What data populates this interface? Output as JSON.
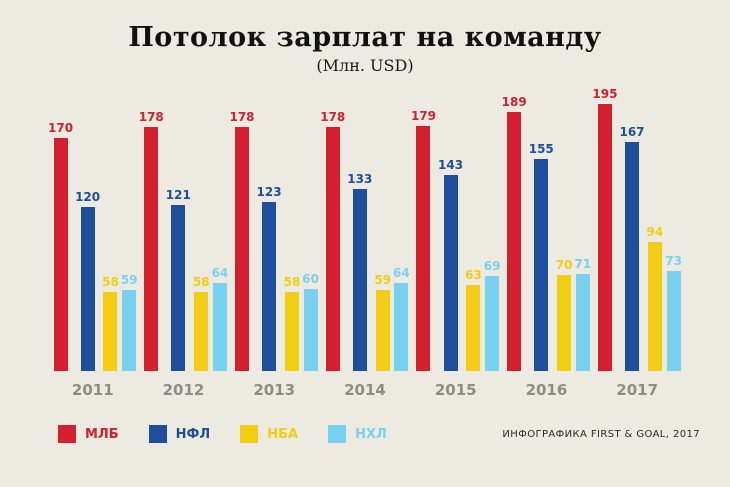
{
  "title": "Потолок зарплат на команду",
  "subtitle": "(Млн. USD)",
  "credit": "ИНФОГРАФИКА FIRST & GOAL, 2017",
  "colors": {
    "background": "#edeae1",
    "year_label": "#8e8c83"
  },
  "chart_data": {
    "type": "bar",
    "title": "Потолок зарплат на команду",
    "subtitle": "(Млн. USD)",
    "categories": [
      "2011",
      "2012",
      "2013",
      "2014",
      "2015",
      "2016",
      "2017"
    ],
    "series": [
      {
        "name": "МЛБ",
        "color": "#d2202f",
        "values": [
          170,
          178,
          178,
          178,
          179,
          189,
          195
        ]
      },
      {
        "name": "НФЛ",
        "color": "#1e4e9c",
        "values": [
          120,
          121,
          123,
          133,
          143,
          155,
          167
        ]
      },
      {
        "name": "НБА",
        "color": "#f3cd14",
        "values": [
          58,
          58,
          58,
          59,
          63,
          70,
          94
        ]
      },
      {
        "name": "НХЛ",
        "color": "#79d1f1",
        "values": [
          59,
          64,
          60,
          64,
          69,
          71,
          73
        ]
      }
    ],
    "xlabel": "",
    "ylabel": "",
    "ylim": [
      0,
      200
    ],
    "grid": false,
    "legend_position": "bottom-left",
    "value_labels": "above-bars, colored same as series"
  }
}
